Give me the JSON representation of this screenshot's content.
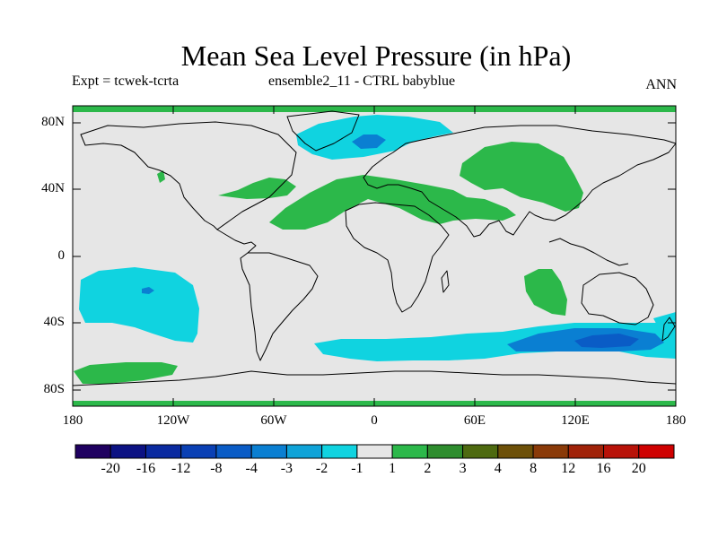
{
  "title": "Mean Sea Level Pressure (in hPa)",
  "subtitle_left": "Expt = tcwek-tcrta",
  "subtitle_center": "ensemble2_11 - CTRL babyblue",
  "subtitle_right": "ANN",
  "lat_labels": [
    "80N",
    "40N",
    "0",
    "40S",
    "80S"
  ],
  "lon_labels": [
    "180",
    "120W",
    "60W",
    "0",
    "60E",
    "120E",
    "180"
  ],
  "colorbar": {
    "colors": [
      "#1f0060",
      "#0c1283",
      "#0a2aa0",
      "#0a40b4",
      "#0a5cc6",
      "#0a7fd2",
      "#0fa3d8",
      "#10d3e0",
      "#e6e6e6",
      "#2cb84a",
      "#2e8d2e",
      "#4e6a10",
      "#6d5008",
      "#8a3a08",
      "#a02208",
      "#b81208",
      "#cf0000"
    ],
    "labels": [
      "-20",
      "-16",
      "-12",
      "-8",
      "-4",
      "-3",
      "-2",
      "-1",
      "1",
      "2",
      "3",
      "4",
      "8",
      "12",
      "16",
      "20"
    ]
  },
  "colors": {
    "background": "#e6e6e6",
    "neg1": "#10d3e0",
    "neg2": "#0a7fd2",
    "neg3": "#0a5cc6",
    "pos1": "#2cb84a"
  }
}
